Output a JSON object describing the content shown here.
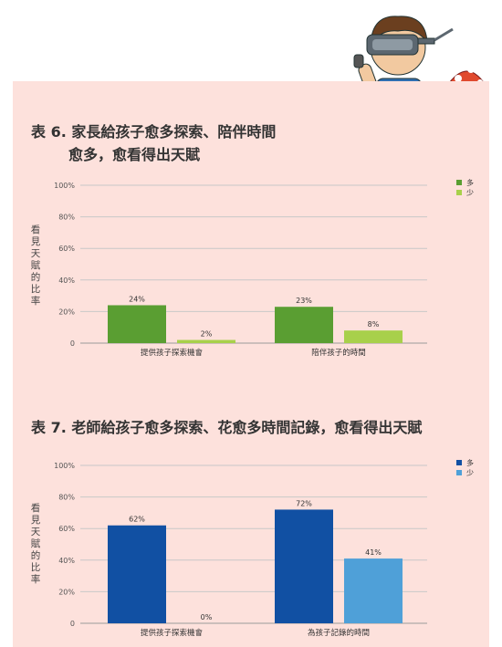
{
  "charts": [
    {
      "title_line1": "表 6. 家長給孩子愈多探索、陪伴時間",
      "title_line2": "愈多，愈看得出天賦",
      "ylabel": "看見天賦的比率",
      "colors": [
        "#5a9e32",
        "#a8d04b"
      ]
    },
    {
      "title_line1": "表 7. 老師給孩子愈多探索、花愈多時間記錄，愈看得出天賦",
      "title_line2": "",
      "ylabel": "看見天賦的比率",
      "colors": [
        "#1150a3",
        "#4fa0d8"
      ]
    }
  ],
  "chart_data": [
    {
      "type": "bar",
      "title": "表 6. 家長給孩子愈多探索、陪伴時間 愈多，愈看得出天賦",
      "ylabel": "看見天賦的比率",
      "categories": [
        "提供孩子探索機會",
        "陪伴孩子的時間"
      ],
      "series": [
        {
          "name": "多",
          "values": [
            24,
            23
          ]
        },
        {
          "name": "少",
          "values": [
            2,
            8
          ]
        }
      ],
      "ylim": [
        0,
        100
      ],
      "yticks": [
        0,
        20,
        40,
        60,
        80,
        100
      ],
      "ytick_labels": [
        "0",
        "20%",
        "40%",
        "60%",
        "80%",
        "100%"
      ],
      "value_labels": [
        [
          "24%",
          "23%"
        ],
        [
          "2%",
          "8%"
        ]
      ],
      "grid": true,
      "legend": "top-right"
    },
    {
      "type": "bar",
      "title": "表 7. 老師給孩子愈多探索、花愈多時間記錄，愈看得出天賦",
      "ylabel": "看見天賦的比率",
      "categories": [
        "提供孩子探索機會",
        "為孩子記錄的時間"
      ],
      "series": [
        {
          "name": "多",
          "values": [
            62,
            72
          ]
        },
        {
          "name": "少",
          "values": [
            0,
            41
          ]
        }
      ],
      "ylim": [
        0,
        100
      ],
      "yticks": [
        0,
        20,
        40,
        60,
        80,
        100
      ],
      "ytick_labels": [
        "0",
        "20%",
        "40%",
        "60%",
        "80%",
        "100%"
      ],
      "value_labels": [
        [
          "62%",
          "72%"
        ],
        [
          "0%",
          "41%"
        ]
      ],
      "grid": true,
      "legend": "top-right"
    }
  ]
}
